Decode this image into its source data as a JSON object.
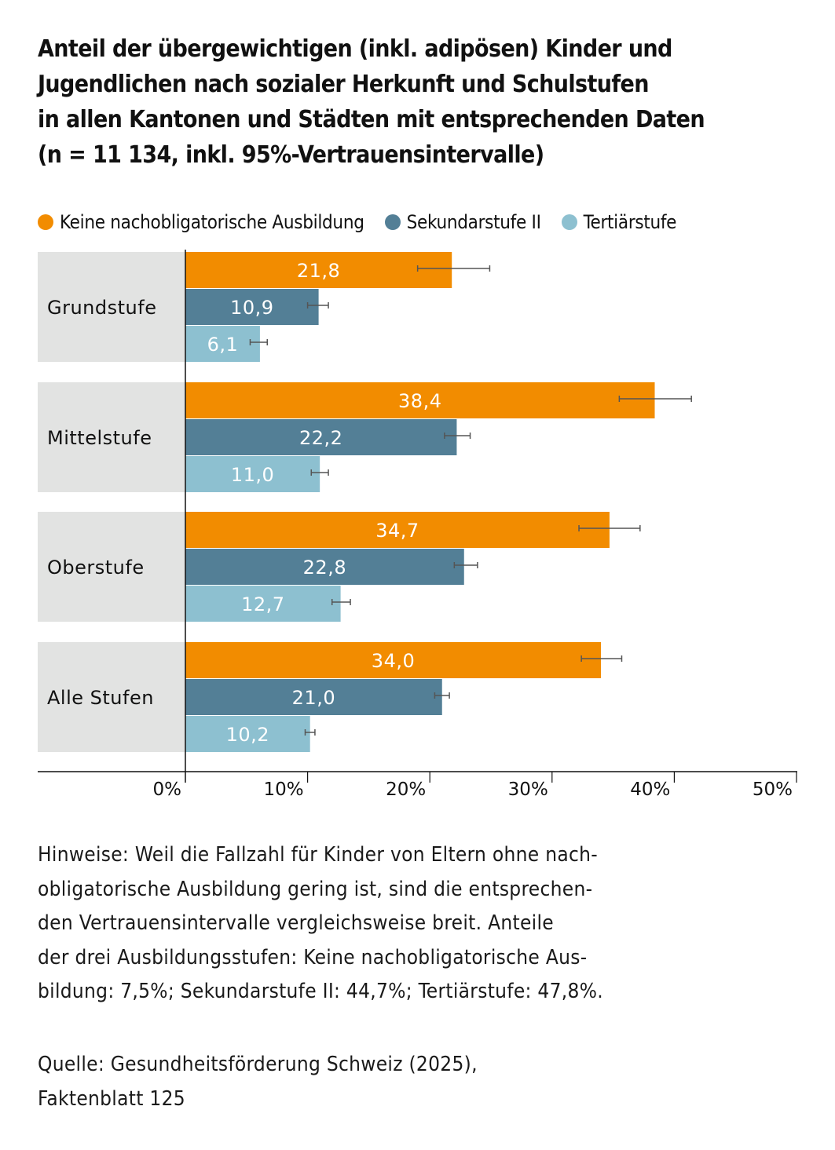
{
  "title_lines": [
    "Anteil der übergewichtigen (inkl. adipösen) Kinder und",
    "Jugendlichen nach sozialer Herkunft und Schulstufen",
    "in allen Kantonen und Städten mit entsprechenden Daten",
    "(n = 11 134, inkl. 95%-Vertrauensintervalle)"
  ],
  "colors": {
    "orange": "#f28c00",
    "dark_blue": "#537f96",
    "light_blue": "#8dc0d0",
    "category_bg": "#e2e3e2",
    "error_bar": "#555555",
    "axis": "#111111"
  },
  "chart_data": {
    "type": "bar",
    "orientation": "horizontal",
    "title": "Anteil der übergewichtigen (inkl. adipösen) Kinder und Jugendlichen nach sozialer Herkunft und Schulstufen in allen Kantonen und Städten mit entsprechenden Daten (n = 11 134, inkl. 95%-Vertrauensintervalle)",
    "categories": [
      "Grundstufe",
      "Mittelstufe",
      "Oberstufe",
      "Alle Stufen"
    ],
    "series": [
      {
        "name": "Keine nachobligatorische Ausbildung",
        "color": "#f28c00",
        "values": [
          21.8,
          38.4,
          34.7,
          34.0
        ],
        "labels": [
          "21,8",
          "38,4",
          "34,7",
          "34,0"
        ],
        "ci": [
          [
            19.0,
            24.9
          ],
          [
            35.5,
            41.4
          ],
          [
            32.2,
            37.2
          ],
          [
            32.4,
            35.7
          ]
        ]
      },
      {
        "name": "Sekundarstufe II",
        "color": "#537f96",
        "values": [
          10.9,
          22.2,
          22.8,
          21.0
        ],
        "labels": [
          "10,9",
          "22,2",
          "22,8",
          "21,0"
        ],
        "ci": [
          [
            10.0,
            11.7
          ],
          [
            21.2,
            23.3
          ],
          [
            22.0,
            23.9
          ],
          [
            20.4,
            21.6
          ]
        ]
      },
      {
        "name": "Tertiärstufe",
        "color": "#8dc0d0",
        "values": [
          6.1,
          11.0,
          12.7,
          10.2
        ],
        "labels": [
          "6,1",
          "11,0",
          "12,7",
          "10,2"
        ],
        "ci": [
          [
            5.3,
            6.7
          ],
          [
            10.3,
            11.7
          ],
          [
            12.0,
            13.5
          ],
          [
            9.8,
            10.6
          ]
        ]
      }
    ],
    "xlim": [
      0,
      50
    ],
    "xticks": [
      0,
      10,
      20,
      30,
      40,
      50
    ],
    "xtick_labels": [
      "0%",
      "10%",
      "20%",
      "30%",
      "40%",
      "50%"
    ],
    "xlabel": "",
    "ylabel": "",
    "grid": false,
    "legend_position": "top"
  },
  "notes_lines": [
    "Hinweise: Weil die Fallzahl für Kinder von Eltern ohne nach-",
    "obligatorische Ausbildung gering ist, sind die entsprechen-",
    "den Vertrauensintervalle vergleichsweise breit. Anteile",
    "der drei Ausbildungsstufen: Keine nachobligatorische Aus-",
    "bildung: 7,5%; Sekundarstufe II: 44,7%; Tertiärstufe: 47,8%."
  ],
  "source_lines": [
    "Quelle: Gesundheitsförderung Schweiz (2025),",
    "Faktenblatt 125"
  ]
}
